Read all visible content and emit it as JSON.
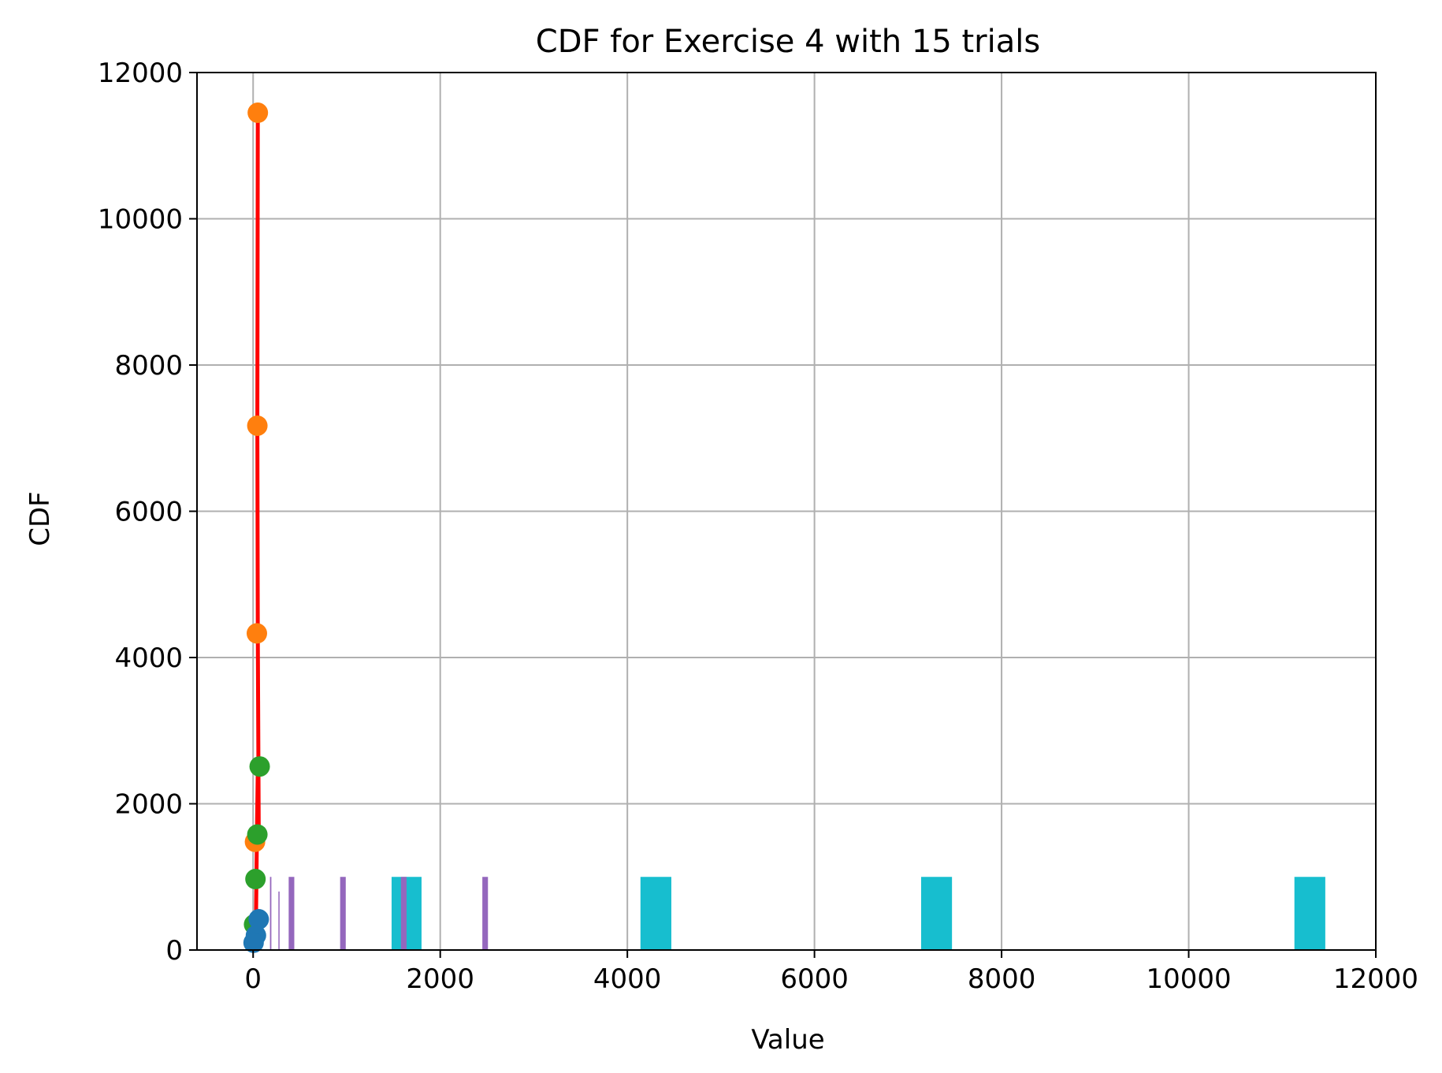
{
  "chart_data": {
    "type": "scatter",
    "title": "CDF for Exercise 4 with 15 trials",
    "xlabel": "Value",
    "ylabel": "CDF",
    "xlim": [
      -600,
      12000
    ],
    "ylim": [
      0,
      12000
    ],
    "xticks": [
      0,
      2000,
      4000,
      6000,
      8000,
      10000,
      12000
    ],
    "yticks": [
      0,
      2000,
      4000,
      6000,
      8000,
      10000,
      12000
    ],
    "grid": true,
    "bars": [
      {
        "color": "#17becf",
        "bins": [
          {
            "x0": 1480,
            "x1": 1800,
            "count": 1000
          },
          {
            "x0": 4140,
            "x1": 4470,
            "count": 1000
          },
          {
            "x0": 7140,
            "x1": 7470,
            "count": 1000
          },
          {
            "x0": 11130,
            "x1": 11460,
            "count": 1000
          }
        ]
      },
      {
        "color": "#9467bd",
        "bins": [
          {
            "x0": 380,
            "x1": 440,
            "count": 1000
          },
          {
            "x0": 930,
            "x1": 990,
            "count": 1000
          },
          {
            "x0": 1580,
            "x1": 1640,
            "count": 1000
          },
          {
            "x0": 2450,
            "x1": 2510,
            "count": 1000
          },
          {
            "x0": 180,
            "x1": 195,
            "count": 1000
          },
          {
            "x0": 270,
            "x1": 280,
            "count": 800
          }
        ]
      }
    ],
    "scatter": [
      {
        "color": "#ff7f0e",
        "points": [
          [
            50,
            11450
          ],
          [
            45,
            7170
          ],
          [
            40,
            4330
          ],
          [
            20,
            1480
          ]
        ]
      },
      {
        "color": "#2ca02c",
        "points": [
          [
            70,
            2510
          ],
          [
            45,
            1580
          ],
          [
            25,
            970
          ],
          [
            10,
            350
          ]
        ]
      },
      {
        "color": "#1f77b4",
        "points": [
          [
            60,
            420
          ],
          [
            30,
            200
          ],
          [
            5,
            100
          ]
        ]
      }
    ],
    "line": {
      "color": "#ff0000",
      "points": [
        [
          5,
          100
        ],
        [
          15,
          400
        ],
        [
          30,
          350
        ],
        [
          40,
          1500
        ],
        [
          50,
          2500
        ],
        [
          60,
          1600
        ],
        [
          50,
          4300
        ],
        [
          45,
          7200
        ],
        [
          50,
          11450
        ]
      ]
    }
  }
}
